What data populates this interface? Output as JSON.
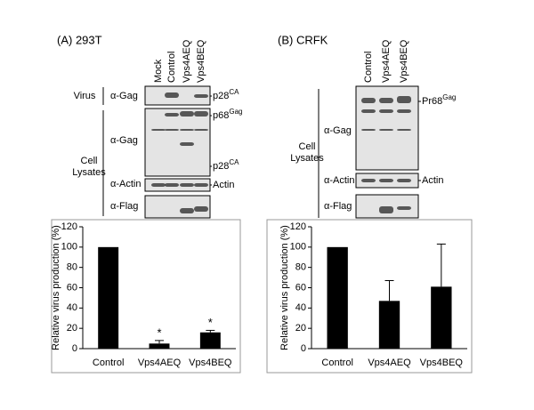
{
  "panels": [
    {
      "title": "(A)  293T",
      "lanes": [
        "Mock",
        "Control",
        "Vps4AEQ",
        "Vps4BEQ"
      ],
      "groups": [
        {
          "lines": [
            "Virus"
          ]
        },
        {
          "lines": [
            "Cell",
            "Lysates"
          ]
        }
      ],
      "antibodies": [
        "α-Gag",
        "α-Gag",
        "α-Actin",
        "α-Flag"
      ],
      "bands": [
        {
          "name": "p28",
          "sup": "CA"
        },
        {
          "name": "p68",
          "sup": "Gag"
        },
        {
          "name": "p28",
          "sup": "CA"
        },
        {
          "name": "Actin"
        }
      ]
    },
    {
      "title": "(B)  CRFK",
      "lanes": [
        "Control",
        "Vps4AEQ",
        "Vps4BEQ"
      ],
      "groups": [
        {
          "lines": [
            "Cell",
            "Lysates"
          ]
        }
      ],
      "antibodies": [
        "α-Gag",
        "α-Actin",
        "α-Flag"
      ],
      "bands": [
        {
          "name": "Pr68",
          "sup": "Gag"
        },
        {
          "name": "Actin"
        }
      ]
    }
  ],
  "chart_data": [
    {
      "type": "bar",
      "y_label": "Relative virus production (%)",
      "categories": [
        "Control",
        "Vps4AEQ",
        "Vps4BEQ"
      ],
      "values": [
        100,
        5,
        16
      ],
      "errors": [
        null,
        3,
        2
      ],
      "significance": [
        null,
        "*",
        "*"
      ],
      "color": "#000000",
      "ylim": [
        0,
        120
      ],
      "yticks": [
        0,
        20,
        40,
        60,
        80,
        100,
        120
      ]
    },
    {
      "type": "bar",
      "y_label": "Relative virus production (%)",
      "categories": [
        "Control",
        "Vps4AEQ",
        "Vps4BEQ"
      ],
      "values": [
        100,
        47,
        61
      ],
      "errors": [
        null,
        20,
        42
      ],
      "color": "#000000",
      "ylim": [
        0,
        120
      ],
      "yticks": [
        0,
        20,
        40,
        60,
        80,
        100,
        120
      ]
    }
  ]
}
